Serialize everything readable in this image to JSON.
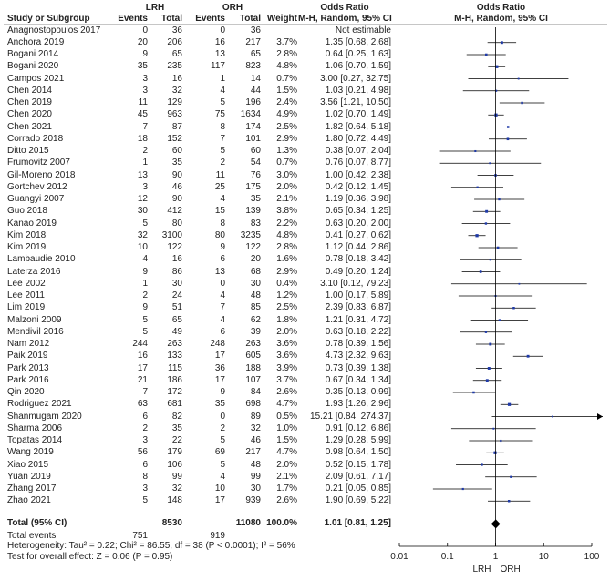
{
  "headers": {
    "study": "Study or Subgroup",
    "group1": "LRH",
    "group2": "ORH",
    "events": "Events",
    "total": "Total",
    "weight": "Weight",
    "or_ci": "Odds Ratio",
    "method": "M-H, Random, 95% CI",
    "or_plot": "Odds Ratio",
    "method_plot": "M-H, Random, 95% CI"
  },
  "studies": [
    {
      "name": "Anagnostopoulos 2017",
      "e1": "0",
      "t1": "36",
      "e2": "0",
      "t2": "36",
      "weight": "",
      "ci": "Not estimable",
      "or": null,
      "lo": null,
      "hi": null
    },
    {
      "name": "Anchora 2019",
      "e1": "20",
      "t1": "206",
      "e2": "16",
      "t2": "217",
      "weight": "3.7%",
      "ci": "1.35 [0.68, 2.68]",
      "or": 1.35,
      "lo": 0.68,
      "hi": 2.68
    },
    {
      "name": "Bogani 2014",
      "e1": "9",
      "t1": "65",
      "e2": "13",
      "t2": "65",
      "weight": "2.8%",
      "ci": "0.64 [0.25, 1.63]",
      "or": 0.64,
      "lo": 0.25,
      "hi": 1.63
    },
    {
      "name": "Bogani 2020",
      "e1": "35",
      "t1": "235",
      "e2": "117",
      "t2": "823",
      "weight": "4.8%",
      "ci": "1.06 [0.70, 1.59]",
      "or": 1.06,
      "lo": 0.7,
      "hi": 1.59
    },
    {
      "name": "Campos 2021",
      "e1": "3",
      "t1": "16",
      "e2": "1",
      "t2": "14",
      "weight": "0.7%",
      "ci": "3.00 [0.27, 32.75]",
      "or": 3.0,
      "lo": 0.27,
      "hi": 32.75
    },
    {
      "name": "Chen 2014",
      "e1": "3",
      "t1": "32",
      "e2": "4",
      "t2": "44",
      "weight": "1.5%",
      "ci": "1.03 [0.21, 4.98]",
      "or": 1.03,
      "lo": 0.21,
      "hi": 4.98
    },
    {
      "name": "Chen 2019",
      "e1": "11",
      "t1": "129",
      "e2": "5",
      "t2": "196",
      "weight": "2.4%",
      "ci": "3.56 [1.21, 10.50]",
      "or": 3.56,
      "lo": 1.21,
      "hi": 10.5
    },
    {
      "name": "Chen 2020",
      "e1": "45",
      "t1": "963",
      "e2": "75",
      "t2": "1634",
      "weight": "4.9%",
      "ci": "1.02 [0.70, 1.49]",
      "or": 1.02,
      "lo": 0.7,
      "hi": 1.49
    },
    {
      "name": "Chen 2021",
      "e1": "7",
      "t1": "87",
      "e2": "8",
      "t2": "174",
      "weight": "2.5%",
      "ci": "1.82 [0.64, 5.18]",
      "or": 1.82,
      "lo": 0.64,
      "hi": 5.18
    },
    {
      "name": "Corrado 2018",
      "e1": "18",
      "t1": "152",
      "e2": "7",
      "t2": "101",
      "weight": "2.9%",
      "ci": "1.80 [0.72, 4.49]",
      "or": 1.8,
      "lo": 0.72,
      "hi": 4.49
    },
    {
      "name": "Ditto 2015",
      "e1": "2",
      "t1": "60",
      "e2": "5",
      "t2": "60",
      "weight": "1.3%",
      "ci": "0.38 [0.07, 2.04]",
      "or": 0.38,
      "lo": 0.07,
      "hi": 2.04
    },
    {
      "name": "Frumovitz 2007",
      "e1": "1",
      "t1": "35",
      "e2": "2",
      "t2": "54",
      "weight": "0.7%",
      "ci": "0.76 [0.07, 8.77]",
      "or": 0.76,
      "lo": 0.07,
      "hi": 8.77
    },
    {
      "name": "Gil-Moreno 2018",
      "e1": "13",
      "t1": "90",
      "e2": "11",
      "t2": "76",
      "weight": "3.0%",
      "ci": "1.00 [0.42, 2.38]",
      "or": 1.0,
      "lo": 0.42,
      "hi": 2.38
    },
    {
      "name": "Gortchev 2012",
      "e1": "3",
      "t1": "46",
      "e2": "25",
      "t2": "175",
      "weight": "2.0%",
      "ci": "0.42 [0.12, 1.45]",
      "or": 0.42,
      "lo": 0.12,
      "hi": 1.45
    },
    {
      "name": "Guangyi 2007",
      "e1": "12",
      "t1": "90",
      "e2": "4",
      "t2": "35",
      "weight": "2.1%",
      "ci": "1.19 [0.36, 3.98]",
      "or": 1.19,
      "lo": 0.36,
      "hi": 3.98
    },
    {
      "name": "Guo 2018",
      "e1": "30",
      "t1": "412",
      "e2": "15",
      "t2": "139",
      "weight": "3.8%",
      "ci": "0.65 [0.34, 1.25]",
      "or": 0.65,
      "lo": 0.34,
      "hi": 1.25
    },
    {
      "name": "Kanao 2019",
      "e1": "5",
      "t1": "80",
      "e2": "8",
      "t2": "83",
      "weight": "2.2%",
      "ci": "0.63 [0.20, 2.00]",
      "or": 0.63,
      "lo": 0.2,
      "hi": 2.0
    },
    {
      "name": "Kim 2018",
      "e1": "32",
      "t1": "3100",
      "e2": "80",
      "t2": "3235",
      "weight": "4.8%",
      "ci": "0.41 [0.27, 0.62]",
      "or": 0.41,
      "lo": 0.27,
      "hi": 0.62
    },
    {
      "name": "Kim 2019",
      "e1": "10",
      "t1": "122",
      "e2": "9",
      "t2": "122",
      "weight": "2.8%",
      "ci": "1.12 [0.44, 2.86]",
      "or": 1.12,
      "lo": 0.44,
      "hi": 2.86
    },
    {
      "name": "Lambaudie 2010",
      "e1": "4",
      "t1": "16",
      "e2": "6",
      "t2": "20",
      "weight": "1.6%",
      "ci": "0.78 [0.18, 3.42]",
      "or": 0.78,
      "lo": 0.18,
      "hi": 3.42
    },
    {
      "name": "Laterza 2016",
      "e1": "9",
      "t1": "86",
      "e2": "13",
      "t2": "68",
      "weight": "2.9%",
      "ci": "0.49 [0.20, 1.24]",
      "or": 0.49,
      "lo": 0.2,
      "hi": 1.24
    },
    {
      "name": "Lee 2002",
      "e1": "1",
      "t1": "30",
      "e2": "0",
      "t2": "30",
      "weight": "0.4%",
      "ci": "3.10 [0.12, 79.23]",
      "or": 3.1,
      "lo": 0.12,
      "hi": 79.23
    },
    {
      "name": "Lee 2011",
      "e1": "2",
      "t1": "24",
      "e2": "4",
      "t2": "48",
      "weight": "1.2%",
      "ci": "1.00 [0.17, 5.89]",
      "or": 1.0,
      "lo": 0.17,
      "hi": 5.89
    },
    {
      "name": "Lim 2019",
      "e1": "9",
      "t1": "51",
      "e2": "7",
      "t2": "85",
      "weight": "2.5%",
      "ci": "2.39 [0.83, 6.87]",
      "or": 2.39,
      "lo": 0.83,
      "hi": 6.87
    },
    {
      "name": "Malzoni 2009",
      "e1": "5",
      "t1": "65",
      "e2": "4",
      "t2": "62",
      "weight": "1.8%",
      "ci": "1.21 [0.31, 4.72]",
      "or": 1.21,
      "lo": 0.31,
      "hi": 4.72
    },
    {
      "name": "Mendivil 2016",
      "e1": "5",
      "t1": "49",
      "e2": "6",
      "t2": "39",
      "weight": "2.0%",
      "ci": "0.63 [0.18, 2.22]",
      "or": 0.63,
      "lo": 0.18,
      "hi": 2.22
    },
    {
      "name": "Nam 2012",
      "e1": "244",
      "t1": "263",
      "e2": "248",
      "t2": "263",
      "weight": "3.6%",
      "ci": "0.78 [0.39, 1.56]",
      "or": 0.78,
      "lo": 0.39,
      "hi": 1.56
    },
    {
      "name": "Paik 2019",
      "e1": "16",
      "t1": "133",
      "e2": "17",
      "t2": "605",
      "weight": "3.6%",
      "ci": "4.73 [2.32, 9.63]",
      "or": 4.73,
      "lo": 2.32,
      "hi": 9.63
    },
    {
      "name": "Park 2013",
      "e1": "17",
      "t1": "115",
      "e2": "36",
      "t2": "188",
      "weight": "3.9%",
      "ci": "0.73 [0.39, 1.38]",
      "or": 0.73,
      "lo": 0.39,
      "hi": 1.38
    },
    {
      "name": "Park 2016",
      "e1": "21",
      "t1": "186",
      "e2": "17",
      "t2": "107",
      "weight": "3.7%",
      "ci": "0.67 [0.34, 1.34]",
      "or": 0.67,
      "lo": 0.34,
      "hi": 1.34
    },
    {
      "name": "Qin 2020",
      "e1": "7",
      "t1": "172",
      "e2": "9",
      "t2": "84",
      "weight": "2.6%",
      "ci": "0.35 [0.13, 0.99]",
      "or": 0.35,
      "lo": 0.13,
      "hi": 0.99
    },
    {
      "name": "Rodriguez 2021",
      "e1": "63",
      "t1": "681",
      "e2": "35",
      "t2": "698",
      "weight": "4.7%",
      "ci": "1.93 [1.26, 2.96]",
      "or": 1.93,
      "lo": 1.26,
      "hi": 2.96
    },
    {
      "name": "Shanmugam 2020",
      "e1": "6",
      "t1": "82",
      "e2": "0",
      "t2": "89",
      "weight": "0.5%",
      "ci": "15.21 [0.84, 274.37]",
      "or": 15.21,
      "lo": 0.84,
      "hi": 274.37
    },
    {
      "name": "Sharma 2006",
      "e1": "2",
      "t1": "35",
      "e2": "2",
      "t2": "32",
      "weight": "1.0%",
      "ci": "0.91 [0.12, 6.86]",
      "or": 0.91,
      "lo": 0.12,
      "hi": 6.86
    },
    {
      "name": "Topatas 2014",
      "e1": "3",
      "t1": "22",
      "e2": "5",
      "t2": "46",
      "weight": "1.5%",
      "ci": "1.29 [0.28, 5.99]",
      "or": 1.29,
      "lo": 0.28,
      "hi": 5.99
    },
    {
      "name": "Wang 2019",
      "e1": "56",
      "t1": "179",
      "e2": "69",
      "t2": "217",
      "weight": "4.7%",
      "ci": "0.98 [0.64, 1.50]",
      "or": 0.98,
      "lo": 0.64,
      "hi": 1.5
    },
    {
      "name": "Xiao 2015",
      "e1": "6",
      "t1": "106",
      "e2": "5",
      "t2": "48",
      "weight": "2.0%",
      "ci": "0.52 [0.15, 1.78]",
      "or": 0.52,
      "lo": 0.15,
      "hi": 1.78
    },
    {
      "name": "Yuan 2019",
      "e1": "8",
      "t1": "99",
      "e2": "4",
      "t2": "99",
      "weight": "2.1%",
      "ci": "2.09 [0.61, 7.17]",
      "or": 2.09,
      "lo": 0.61,
      "hi": 7.17
    },
    {
      "name": "Zhang 2017",
      "e1": "3",
      "t1": "32",
      "e2": "10",
      "t2": "30",
      "weight": "1.7%",
      "ci": "0.21 [0.05, 0.85]",
      "or": 0.21,
      "lo": 0.05,
      "hi": 0.85
    },
    {
      "name": "Zhao 2021",
      "e1": "5",
      "t1": "148",
      "e2": "17",
      "t2": "939",
      "weight": "2.6%",
      "ci": "1.90 [0.69, 5.22]",
      "or": 1.9,
      "lo": 0.69,
      "hi": 5.22
    }
  ],
  "total": {
    "label": "Total (95% CI)",
    "t1": "8530",
    "t2": "11080",
    "weight": "100.0%",
    "ci": "1.01 [0.81, 1.25]",
    "or": 1.01,
    "lo": 0.81,
    "hi": 1.25,
    "events_label": "Total events",
    "e1": "751",
    "e2": "919",
    "heterogeneity": "Heterogeneity: Tau² = 0.22; Chi² = 86.55, df = 38 (P < 0.0001); I² = 56%",
    "overall": "Test for overall effect: Z = 0.06 (P = 0.95)"
  },
  "chart_data": {
    "type": "forest",
    "scale": "log",
    "xlim": [
      0.01,
      100
    ],
    "ticks": [
      "0.01",
      "0.1",
      "1",
      "10",
      "100"
    ],
    "tick_values": [
      0.01,
      0.1,
      1,
      10,
      100
    ],
    "favours_left": "LRH",
    "favours_right": "ORH",
    "point_color": "#1f3aa8",
    "diamond_color": "#000000"
  }
}
